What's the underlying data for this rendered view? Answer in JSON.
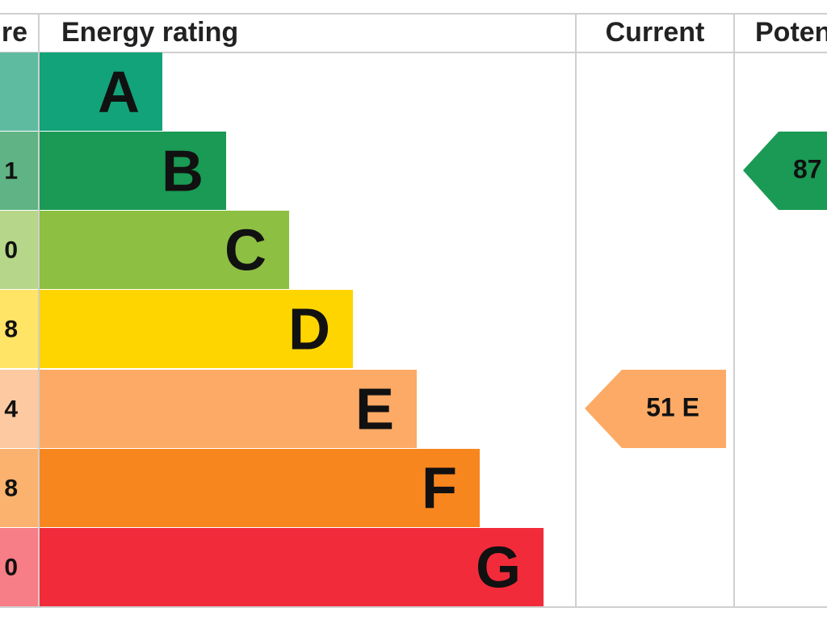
{
  "header": {
    "score": "re",
    "rating": "Energy rating",
    "current": "Current",
    "potential": "Poten"
  },
  "rows": [
    {
      "score": "",
      "letter": "A"
    },
    {
      "score": "1",
      "letter": "B"
    },
    {
      "score": "0",
      "letter": "C"
    },
    {
      "score": "8",
      "letter": "D"
    },
    {
      "score": "4",
      "letter": "E"
    },
    {
      "score": "8",
      "letter": "F"
    },
    {
      "score": "0",
      "letter": "G"
    }
  ],
  "current": "51 E",
  "potential": "87"
}
